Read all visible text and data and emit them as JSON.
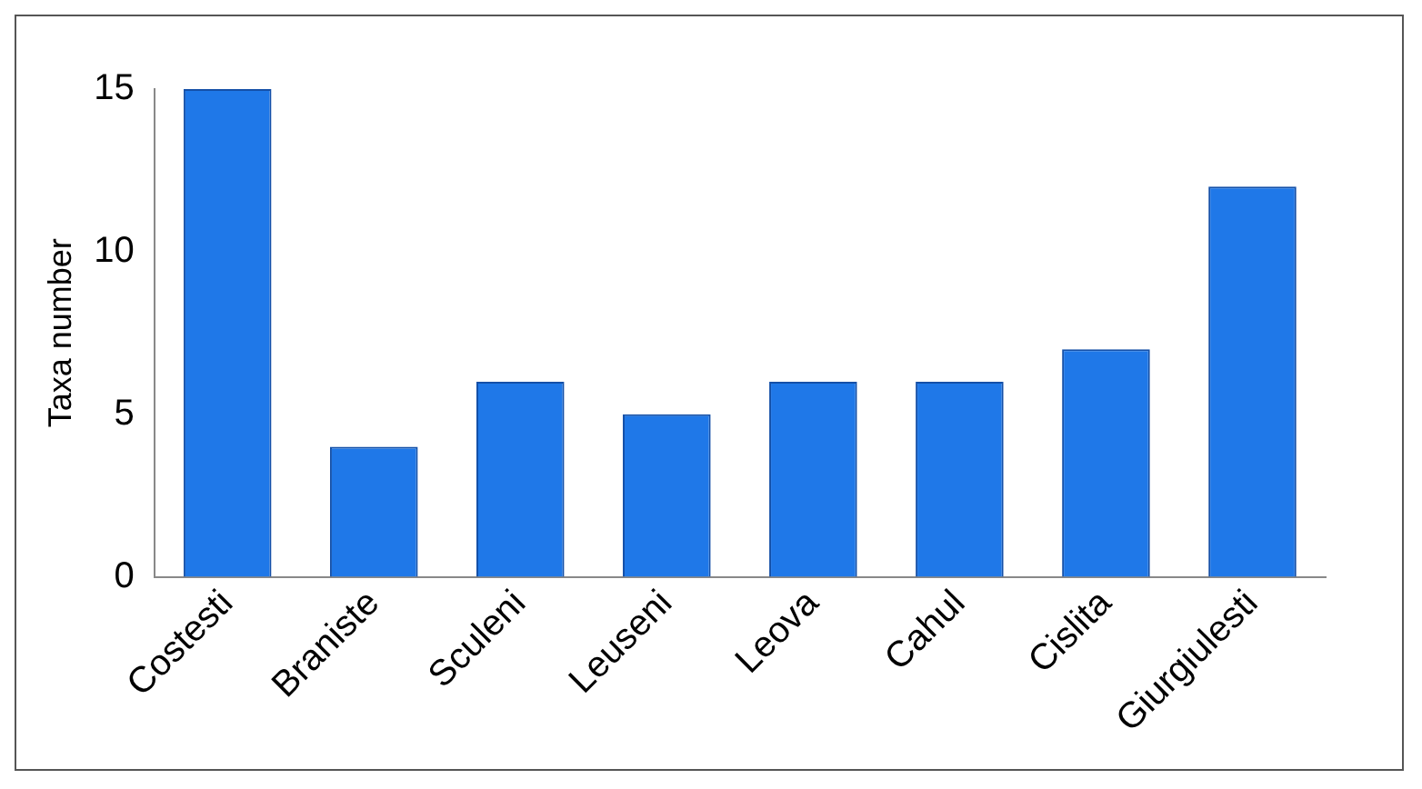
{
  "chart_data": {
    "type": "bar",
    "ylabel": "Taxa number",
    "categories": [
      "Costesti",
      "Braniste",
      "Sculeni",
      "Leuseni",
      "Leova",
      "Cahul",
      "Cislita",
      "Giurgiulesti"
    ],
    "values": [
      15,
      4,
      6,
      5,
      6,
      6,
      7,
      12
    ],
    "color": "#1f78e8",
    "ylim": [
      0,
      15
    ],
    "yticks": [
      0,
      5,
      10,
      15
    ],
    "grid": false,
    "legend": false
  }
}
